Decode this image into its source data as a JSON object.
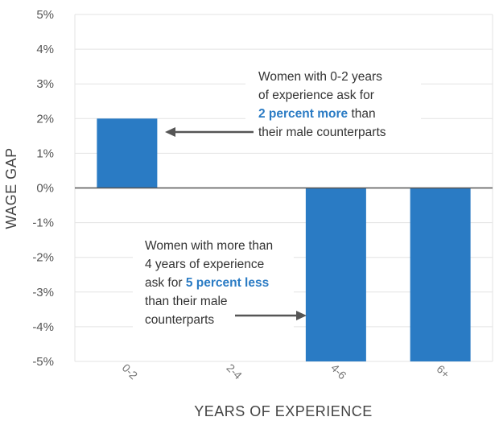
{
  "chart_data": {
    "type": "bar",
    "title": "",
    "xlabel": "YEARS OF EXPERIENCE",
    "ylabel": "WAGE GAP",
    "categories": [
      "0-2",
      "2-4",
      "4-6",
      "6+"
    ],
    "values": [
      2,
      0,
      -5,
      -5
    ],
    "ylim": [
      -5,
      5
    ],
    "yticks": [
      "5%",
      "4%",
      "3%",
      "2%",
      "1%",
      "0%",
      "-1%",
      "-2%",
      "-3%",
      "-4%",
      "-5%"
    ],
    "grid": "horizontal",
    "colors": {
      "bar": "#2a7bc4",
      "grid": "#e3e3e3",
      "zero_line": "#555555",
      "arrow": "#555555",
      "highlight": "#2a7bc4"
    },
    "annotations": [
      {
        "name": "annotation-top",
        "lines": [
          [
            {
              "text": "Women with 0-2 years"
            }
          ],
          [
            {
              "text": "of experience ask for"
            }
          ],
          [
            {
              "text": "2 percent more",
              "bold": true
            },
            {
              "text": " than"
            }
          ],
          [
            {
              "text": "their male counterparts"
            }
          ]
        ]
      },
      {
        "name": "annotation-bottom",
        "lines": [
          [
            {
              "text": "Women with more than"
            }
          ],
          [
            {
              "text": "4 years of experience"
            }
          ],
          [
            {
              "text": "ask for "
            },
            {
              "text": "5 percent less",
              "bold": true
            }
          ],
          [
            {
              "text": "than their male"
            }
          ],
          [
            {
              "text": "counterparts"
            }
          ]
        ]
      }
    ]
  }
}
